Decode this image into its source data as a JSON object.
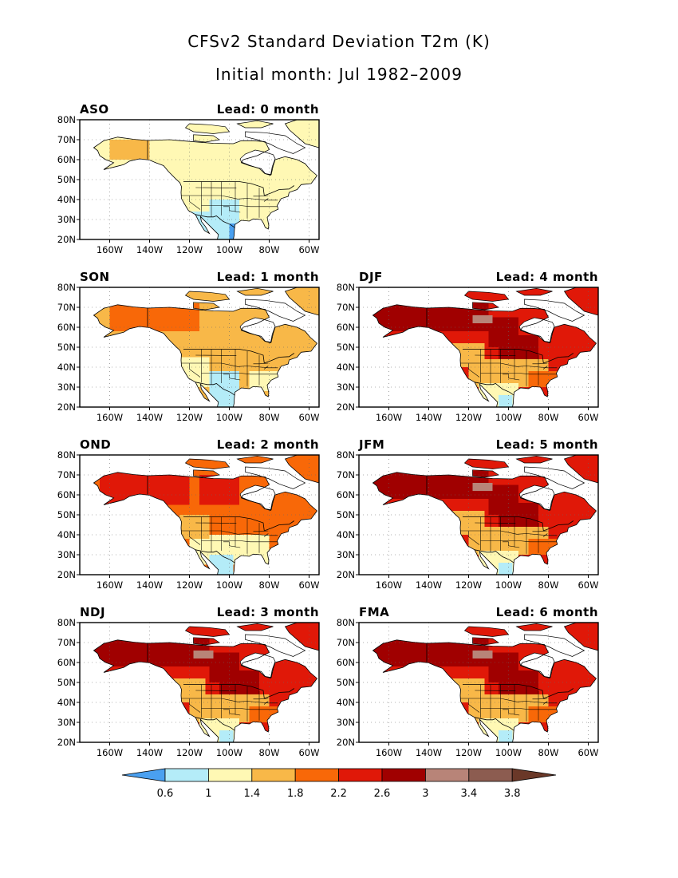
{
  "title": "CFSv2 Standard Deviation T2m (K)",
  "subtitle": "Initial month: Jul 1982–2009",
  "lat_labels": [
    "80N",
    "70N",
    "60N",
    "50N",
    "40N",
    "30N",
    "20N"
  ],
  "lon_labels": [
    "160W",
    "140W",
    "120W",
    "100W",
    "80W",
    "60W"
  ],
  "lead_prefix": "Lead:",
  "panels": [
    {
      "season": "ASO",
      "lead": "Lead: 0 month",
      "intensity": 0
    },
    {
      "season": "SON",
      "lead": "Lead: 1 month",
      "intensity": 1
    },
    {
      "season": "OND",
      "lead": "Lead: 2 month",
      "intensity": 2
    },
    {
      "season": "NDJ",
      "lead": "Lead: 3 month",
      "intensity": 3
    },
    {
      "season": "DJF",
      "lead": "Lead: 4 month",
      "intensity": 3
    },
    {
      "season": "JFM",
      "lead": "Lead: 5 month",
      "intensity": 3
    },
    {
      "season": "FMA",
      "lead": "Lead: 6 month",
      "intensity": 3
    }
  ],
  "colorbar": {
    "labels": [
      "0.6",
      "1",
      "1.4",
      "1.8",
      "2.2",
      "2.6",
      "3",
      "3.4",
      "3.8"
    ],
    "colors": [
      "#4aa0f0",
      "#b4ecf8",
      "#fff8b4",
      "#f8b848",
      "#f86808",
      "#e01808",
      "#a00000",
      "#b88478",
      "#8c5c50",
      "#6a3828"
    ]
  }
}
